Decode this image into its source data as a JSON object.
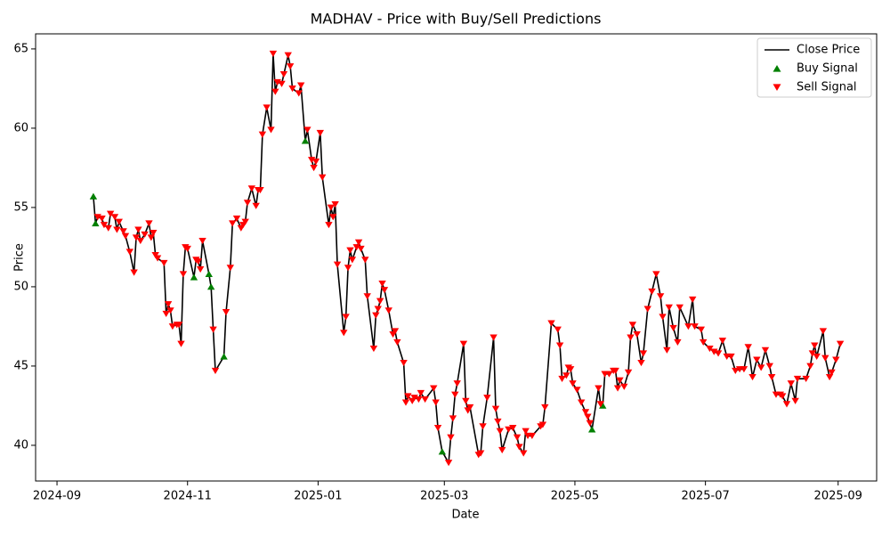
{
  "chart_data": {
    "type": "line",
    "title": "MADHAV - Price with Buy/Sell Predictions",
    "xlabel": "Date",
    "ylabel": "Price",
    "x": [
      "2024-09-18",
      "2024-09-19",
      "2024-09-20",
      "2024-09-22",
      "2024-09-23",
      "2024-09-25",
      "2024-09-26",
      "2024-09-28",
      "2024-09-29",
      "2024-09-30",
      "2024-10-02",
      "2024-10-03",
      "2024-10-05",
      "2024-10-07",
      "2024-10-08",
      "2024-10-09",
      "2024-10-10",
      "2024-10-12",
      "2024-10-14",
      "2024-10-15",
      "2024-10-16",
      "2024-10-17",
      "2024-10-18",
      "2024-10-21",
      "2024-10-22",
      "2024-10-23",
      "2024-10-24",
      "2024-10-25",
      "2024-10-27",
      "2024-10-28",
      "2024-10-29",
      "2024-10-30",
      "2024-10-31",
      "2024-11-01",
      "2024-11-04",
      "2024-11-05",
      "2024-11-06",
      "2024-11-07",
      "2024-11-08",
      "2024-11-11",
      "2024-11-12",
      "2024-11-13",
      "2024-11-14",
      "2024-11-18",
      "2024-11-19",
      "2024-11-21",
      "2024-11-22",
      "2024-11-24",
      "2024-11-26",
      "2024-11-27",
      "2024-11-28",
      "2024-11-29",
      "2024-12-01",
      "2024-12-03",
      "2024-12-04",
      "2024-12-05",
      "2024-12-06",
      "2024-12-08",
      "2024-12-10",
      "2024-12-11",
      "2024-12-12",
      "2024-12-13",
      "2024-12-15",
      "2024-12-16",
      "2024-12-18",
      "2024-12-19",
      "2024-12-20",
      "2024-12-23",
      "2024-12-24",
      "2024-12-26",
      "2024-12-27",
      "2024-12-29",
      "2024-12-30",
      "2024-12-31",
      "2025-01-02",
      "2025-01-03",
      "2025-01-06",
      "2025-01-07",
      "2025-01-08",
      "2025-01-09",
      "2025-01-10",
      "2025-01-13",
      "2025-01-14",
      "2025-01-15",
      "2025-01-16",
      "2025-01-17",
      "2025-01-19",
      "2025-01-20",
      "2025-01-21",
      "2025-01-23",
      "2025-01-24",
      "2025-01-27",
      "2025-01-28",
      "2025-01-29",
      "2025-01-30",
      "2025-01-31",
      "2025-02-01",
      "2025-02-03",
      "2025-02-05",
      "2025-02-06",
      "2025-02-07",
      "2025-02-10",
      "2025-02-11",
      "2025-02-12",
      "2025-02-14",
      "2025-02-15",
      "2025-02-17",
      "2025-02-18",
      "2025-02-20",
      "2025-02-24",
      "2025-02-25",
      "2025-02-26",
      "2025-02-28",
      "2025-03-03",
      "2025-03-04",
      "2025-03-05",
      "2025-03-06",
      "2025-03-07",
      "2025-03-10",
      "2025-03-11",
      "2025-03-12",
      "2025-03-13",
      "2025-03-17",
      "2025-03-18",
      "2025-03-19",
      "2025-03-21",
      "2025-03-24",
      "2025-03-25",
      "2025-03-26",
      "2025-03-27",
      "2025-03-28",
      "2025-03-31",
      "2025-04-02",
      "2025-04-04",
      "2025-04-05",
      "2025-04-07",
      "2025-04-08",
      "2025-04-09",
      "2025-04-11",
      "2025-04-15",
      "2025-04-16",
      "2025-04-17",
      "2025-04-20",
      "2025-04-23",
      "2025-04-24",
      "2025-04-25",
      "2025-04-27",
      "2025-04-28",
      "2025-04-29",
      "2025-04-30",
      "2025-05-02",
      "2025-05-04",
      "2025-05-06",
      "2025-05-07",
      "2025-05-08",
      "2025-05-09",
      "2025-05-12",
      "2025-05-13",
      "2025-05-14",
      "2025-05-15",
      "2025-05-17",
      "2025-05-19",
      "2025-05-20",
      "2025-05-21",
      "2025-05-22",
      "2025-05-24",
      "2025-05-26",
      "2025-05-27",
      "2025-05-28",
      "2025-05-30",
      "2025-06-01",
      "2025-06-02",
      "2025-06-04",
      "2025-06-06",
      "2025-06-08",
      "2025-06-10",
      "2025-06-11",
      "2025-06-13",
      "2025-06-14",
      "2025-06-16",
      "2025-06-18",
      "2025-06-19",
      "2025-06-23",
      "2025-06-25",
      "2025-06-26",
      "2025-06-29",
      "2025-06-30",
      "2025-07-03",
      "2025-07-05",
      "2025-07-07",
      "2025-07-09",
      "2025-07-11",
      "2025-07-13",
      "2025-07-15",
      "2025-07-17",
      "2025-07-19",
      "2025-07-21",
      "2025-07-23",
      "2025-07-25",
      "2025-07-27",
      "2025-07-29",
      "2025-07-31",
      "2025-08-01",
      "2025-08-03",
      "2025-08-05",
      "2025-08-06",
      "2025-08-08",
      "2025-08-10",
      "2025-08-12",
      "2025-08-13",
      "2025-08-17",
      "2025-08-19",
      "2025-08-20",
      "2025-08-21",
      "2025-08-22",
      "2025-08-25",
      "2025-08-26",
      "2025-08-28",
      "2025-08-29",
      "2025-08-31",
      "2025-09-02"
    ],
    "series": [
      {
        "name": "Close Price",
        "type": "line",
        "color": "#000000",
        "values": [
          55.7,
          54.0,
          54.4,
          54.3,
          53.9,
          53.7,
          54.6,
          54.4,
          53.6,
          54.1,
          53.5,
          53.2,
          52.2,
          50.9,
          53.1,
          53.6,
          52.9,
          53.3,
          54.0,
          53.1,
          53.4,
          52.0,
          51.8,
          51.5,
          48.3,
          48.9,
          48.5,
          47.5,
          47.6,
          47.6,
          46.4,
          50.8,
          52.5,
          52.4,
          50.6,
          51.7,
          51.6,
          51.1,
          52.9,
          50.8,
          50.0,
          47.3,
          44.7,
          45.6,
          48.4,
          51.2,
          54.0,
          54.3,
          53.7,
          53.9,
          54.1,
          55.3,
          56.2,
          55.1,
          56.1,
          56.1,
          59.6,
          61.3,
          59.9,
          64.7,
          62.3,
          62.9,
          62.8,
          63.4,
          64.6,
          63.9,
          62.5,
          62.2,
          62.7,
          59.2,
          59.9,
          58.0,
          57.5,
          57.9,
          59.7,
          56.9,
          53.9,
          55.0,
          54.4,
          55.2,
          51.4,
          47.1,
          48.1,
          51.2,
          52.3,
          51.7,
          52.5,
          52.8,
          52.4,
          51.7,
          49.4,
          46.1,
          48.2,
          48.6,
          49.1,
          50.2,
          49.8,
          48.5,
          47.0,
          47.2,
          46.5,
          45.2,
          42.7,
          43.1,
          42.8,
          43.0,
          42.9,
          43.3,
          42.9,
          43.6,
          42.7,
          41.1,
          39.6,
          38.9,
          40.5,
          41.7,
          43.2,
          43.9,
          46.4,
          42.8,
          42.2,
          42.4,
          39.4,
          39.5,
          41.2,
          43.0,
          46.8,
          42.3,
          41.5,
          40.9,
          39.7,
          41.0,
          41.1,
          40.5,
          39.9,
          39.5,
          40.9,
          40.6,
          40.6,
          41.2,
          41.3,
          42.4,
          47.7,
          47.3,
          46.3,
          44.2,
          44.4,
          44.9,
          44.8,
          43.9,
          43.5,
          42.7,
          42.1,
          41.8,
          41.4,
          41.0,
          43.6,
          42.6,
          42.5,
          44.5,
          44.5,
          44.7,
          44.7,
          43.6,
          44.1,
          43.7,
          44.6,
          46.8,
          47.6,
          47.0,
          45.2,
          45.8,
          48.6,
          49.7,
          50.8,
          49.4,
          48.1,
          46.0,
          48.7,
          47.4,
          46.5,
          48.7,
          47.5,
          49.2,
          47.5,
          47.3,
          46.5,
          46.1,
          45.9,
          45.8,
          46.6,
          45.6,
          45.6,
          44.7,
          44.8,
          44.8,
          46.2,
          44.3,
          45.4,
          44.9,
          46.0,
          45.0,
          44.3,
          43.2,
          43.2,
          43.1,
          42.6,
          43.9,
          42.8,
          44.2,
          44.2,
          45.0,
          45.8,
          46.3,
          45.6,
          47.2,
          45.5,
          44.3,
          44.6,
          45.4,
          46.4
        ]
      },
      {
        "name": "Buy Signal",
        "type": "scatter",
        "marker": "triangle-up",
        "color": "#008000",
        "values": [
          55.7,
          54.0,
          null,
          null,
          null,
          null,
          null,
          null,
          null,
          null,
          null,
          null,
          null,
          null,
          null,
          null,
          null,
          null,
          null,
          null,
          null,
          null,
          null,
          null,
          null,
          null,
          null,
          null,
          null,
          null,
          null,
          null,
          null,
          null,
          50.6,
          null,
          null,
          null,
          null,
          50.8,
          50.0,
          null,
          null,
          45.6,
          null,
          null,
          null,
          null,
          null,
          null,
          null,
          null,
          null,
          null,
          null,
          null,
          null,
          null,
          null,
          null,
          null,
          null,
          null,
          null,
          null,
          null,
          null,
          null,
          null,
          59.2,
          null,
          null,
          null,
          null,
          null,
          null,
          null,
          null,
          null,
          null,
          null,
          null,
          null,
          null,
          null,
          null,
          null,
          null,
          null,
          null,
          null,
          null,
          null,
          null,
          null,
          null,
          null,
          null,
          null,
          null,
          null,
          null,
          null,
          null,
          null,
          null,
          null,
          null,
          null,
          null,
          null,
          null,
          39.6,
          null,
          null,
          null,
          null,
          null,
          null,
          null,
          null,
          null,
          null,
          null,
          null,
          null,
          null,
          null,
          null,
          null,
          null,
          null,
          null,
          null,
          null,
          null,
          null,
          null,
          null,
          null,
          null,
          null,
          null,
          null,
          null,
          null,
          null,
          null,
          null,
          null,
          null,
          null,
          null,
          null,
          null,
          41.0,
          null,
          null,
          42.5,
          null,
          null,
          null,
          null,
          null,
          null,
          null,
          null,
          null,
          null,
          null,
          null,
          null,
          null,
          null,
          null,
          null,
          null,
          null,
          null,
          null,
          null,
          null,
          null,
          null,
          null,
          null,
          null,
          null,
          null,
          null,
          null,
          null,
          null,
          null,
          null,
          null,
          null,
          null,
          null,
          null,
          null,
          null,
          null,
          null,
          null,
          null,
          null,
          null,
          null,
          null,
          null,
          null,
          null,
          null,
          null,
          null,
          null,
          null,
          null,
          null,
          null
        ]
      },
      {
        "name": "Sell Signal",
        "type": "scatter",
        "marker": "triangle-down",
        "color": "#ff0000",
        "values": [
          null,
          null,
          54.4,
          54.3,
          53.9,
          53.7,
          54.6,
          54.4,
          53.6,
          54.1,
          53.5,
          53.2,
          52.2,
          50.9,
          53.1,
          53.6,
          52.9,
          53.3,
          54.0,
          53.1,
          53.4,
          52.0,
          51.8,
          51.5,
          48.3,
          48.9,
          48.5,
          47.5,
          47.6,
          47.6,
          46.4,
          50.8,
          52.5,
          52.4,
          null,
          51.7,
          51.6,
          51.1,
          52.9,
          null,
          null,
          47.3,
          44.7,
          null,
          48.4,
          51.2,
          54.0,
          54.3,
          53.7,
          53.9,
          54.1,
          55.3,
          56.2,
          55.1,
          56.1,
          56.1,
          59.6,
          61.3,
          59.9,
          64.7,
          62.3,
          62.9,
          62.8,
          63.4,
          64.6,
          63.9,
          62.5,
          62.2,
          62.7,
          null,
          59.9,
          58.0,
          57.5,
          57.9,
          59.7,
          56.9,
          53.9,
          55.0,
          54.4,
          55.2,
          51.4,
          47.1,
          48.1,
          51.2,
          52.3,
          51.7,
          52.5,
          52.8,
          52.4,
          51.7,
          49.4,
          46.1,
          48.2,
          48.6,
          49.1,
          50.2,
          49.8,
          48.5,
          47.0,
          47.2,
          46.5,
          45.2,
          42.7,
          43.1,
          42.8,
          43.0,
          42.9,
          43.3,
          42.9,
          43.6,
          42.7,
          41.1,
          null,
          38.9,
          40.5,
          41.7,
          43.2,
          43.9,
          46.4,
          42.8,
          42.2,
          42.4,
          39.4,
          39.5,
          41.2,
          43.0,
          46.8,
          42.3,
          41.5,
          40.9,
          39.7,
          41.0,
          41.1,
          40.5,
          39.9,
          39.5,
          40.9,
          40.6,
          40.6,
          41.2,
          41.3,
          42.4,
          47.7,
          47.3,
          46.3,
          44.2,
          44.4,
          44.9,
          44.8,
          43.9,
          43.5,
          42.7,
          42.1,
          41.8,
          41.4,
          null,
          43.6,
          42.6,
          null,
          44.5,
          44.5,
          44.7,
          44.7,
          43.6,
          44.1,
          43.7,
          44.6,
          46.8,
          47.6,
          47.0,
          45.2,
          45.8,
          48.6,
          49.7,
          50.8,
          49.4,
          48.1,
          46.0,
          48.7,
          47.4,
          46.5,
          48.7,
          47.5,
          49.2,
          47.5,
          47.3,
          46.5,
          46.1,
          45.9,
          45.8,
          46.6,
          45.6,
          45.6,
          44.7,
          44.8,
          44.8,
          46.2,
          44.3,
          45.4,
          44.9,
          46.0,
          45.0,
          44.3,
          43.2,
          43.2,
          43.1,
          42.6,
          43.9,
          42.8,
          44.2,
          44.2,
          45.0,
          45.8,
          46.3,
          45.6,
          47.2,
          45.5,
          44.3,
          44.6,
          45.4,
          46.4
        ]
      }
    ],
    "xlim": [
      "2024-08-22",
      "2025-09-19"
    ],
    "xticks": [
      "2024-09",
      "2024-11",
      "2025-01",
      "2025-03",
      "2025-05",
      "2025-07",
      "2025-09"
    ],
    "ylim": [
      37.75,
      65.95
    ],
    "yticks": [
      40,
      45,
      50,
      55,
      60,
      65
    ],
    "grid": false,
    "legend": "upper-right"
  }
}
